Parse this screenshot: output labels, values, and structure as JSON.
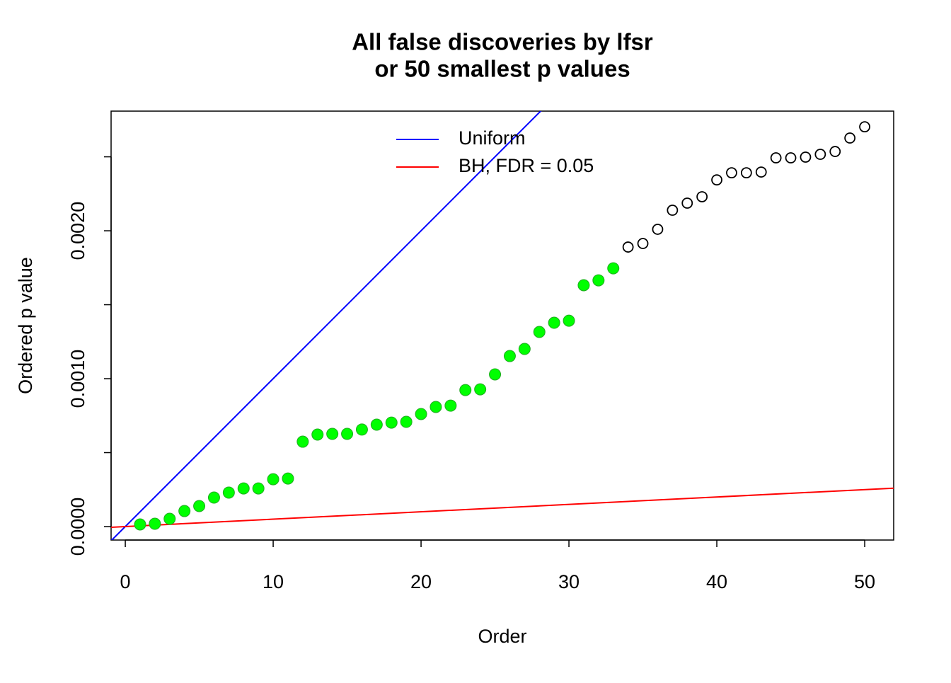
{
  "chart_data": {
    "type": "scatter",
    "title": [
      "All false discoveries by lfsr",
      "or 50 smallest p values"
    ],
    "xlabel": "Order",
    "ylabel": "Ordered p value",
    "xlim": [
      -0.96,
      51.96
    ],
    "ylim": [
      -9.09e-05,
      0.002809
    ],
    "xticks": [
      0,
      10,
      20,
      30,
      40,
      50
    ],
    "yticks": [
      {
        "value": 0,
        "label": "0.0000"
      },
      {
        "value": 0.001,
        "label": "0.0010"
      },
      {
        "value": 0.002,
        "label": "0.0020"
      }
    ],
    "yticks_unlabeled": [
      0.0005,
      0.0015,
      0.0025
    ],
    "series": [
      {
        "color": "#00ff00",
        "filled": true,
        "x": [
          1,
          2,
          3,
          4,
          5,
          6,
          7,
          8,
          9,
          10,
          11,
          12,
          13,
          14,
          15,
          16,
          17,
          18,
          19,
          20,
          21,
          22,
          23,
          24,
          25,
          26,
          27,
          28,
          29,
          30,
          31,
          32,
          33
        ],
        "values": [
          1.44e-05,
          1.91e-05,
          5.26e-05,
          0.000105,
          0.000139,
          0.000196,
          0.00023,
          0.000258,
          0.000258,
          0.00032,
          0.000325,
          0.000574,
          0.000622,
          0.000627,
          0.000627,
          0.000656,
          0.000689,
          0.000703,
          0.000708,
          0.000761,
          0.000809,
          0.000818,
          0.000923,
          0.000928,
          0.001029,
          0.001153,
          0.001201,
          0.001316,
          0.001378,
          0.001392,
          0.001632,
          0.001665,
          0.001746
        ]
      },
      {
        "color": "#000000",
        "filled": false,
        "x": [
          34,
          35,
          36,
          37,
          38,
          39,
          40,
          41,
          42,
          43,
          44,
          45,
          46,
          47,
          48,
          49,
          50
        ],
        "values": [
          0.00189,
          0.001914,
          0.00201,
          0.002139,
          0.002187,
          0.00223,
          0.002344,
          0.002392,
          0.002392,
          0.002397,
          0.002493,
          0.002493,
          0.002498,
          0.002517,
          0.002536,
          0.002627,
          0.002703
        ]
      }
    ],
    "lines": [
      {
        "name": "Uniform",
        "color": "#0000ff",
        "slope": 0.0001,
        "intercept": 0
      },
      {
        "name": "BH, FDR = 0.05",
        "color": "#ff0000",
        "slope": 5e-06,
        "intercept": 0
      }
    ],
    "legend": "top"
  }
}
